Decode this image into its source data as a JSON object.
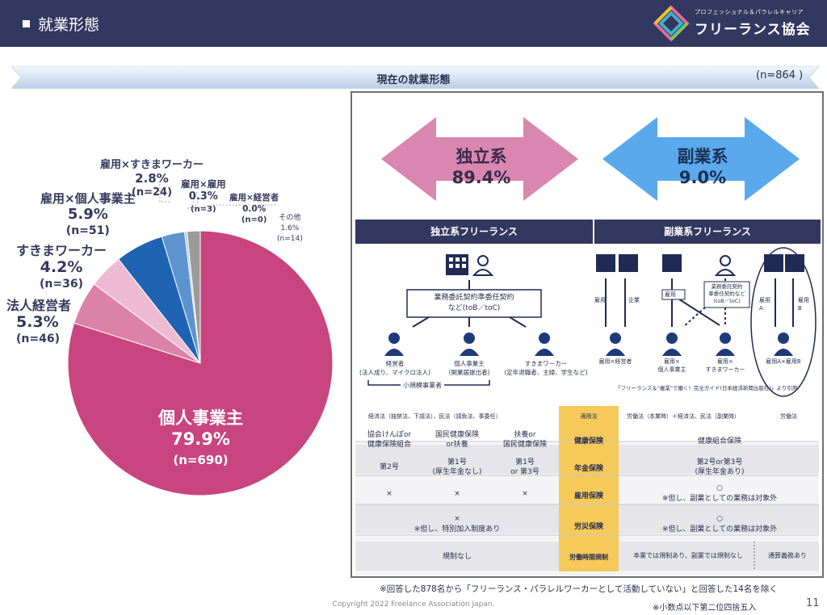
{
  "header": {
    "title": "就業形態",
    "logo_small": "プロフェッショナル＆パラレルキャリア",
    "logo_name": "フリーランス協会"
  },
  "ribbon": {
    "title": "現在の就業形態",
    "n": "(n=864 )"
  },
  "chart_data": {
    "type": "pie",
    "title": "現在の就業形態",
    "slices": [
      {
        "label": "個人事業主",
        "value": 79.9,
        "n": "(n=690)",
        "color": "#c8457f"
      },
      {
        "label": "法人経営者",
        "value": 5.3,
        "n": "(n=46)",
        "color": "#dc82a8"
      },
      {
        "label": "すきまワーカー",
        "value": 4.2,
        "n": "(n=36)",
        "color": "#eebbd3"
      },
      {
        "label": "雇用×個人事業主",
        "value": 5.9,
        "n": "(n=51)",
        "color": "#1f63b3"
      },
      {
        "label": "雇用×すきまワーカー",
        "value": 2.8,
        "n": "(n=24)",
        "color": "#5d93cf"
      },
      {
        "label": "雇用×雇用",
        "value": 0.3,
        "n": "(n=3)",
        "color": "#aac8e6"
      },
      {
        "label": "雇用×経営者",
        "value": 0.0,
        "n": "(n=0)",
        "color": "#e0ebf5"
      },
      {
        "label": "その他",
        "value": 1.6,
        "n": "(n=14)",
        "color": "#9b9b9b"
      }
    ],
    "value_labels": [
      "79.9%",
      "5.3%",
      "4.2%",
      "5.9%",
      "2.8%",
      "0.3%",
      "0.0%",
      "1.6%"
    ]
  },
  "panel": {
    "left_arrow": {
      "label": "独立系",
      "value": "89.4%"
    },
    "right_arrow": {
      "label": "副業系",
      "value": "9.0%"
    },
    "col_left": "独立系フリーランス",
    "col_right": "副業系フリーランス",
    "contract_box": "業務委託契約準委任契約\nなど(toB／toC)",
    "persons_left": [
      {
        "title": "経営者",
        "sub": "(法人成り、マイクロ法人)"
      },
      {
        "title": "個人事業主",
        "sub": "(開業届提出者)"
      },
      {
        "title": "すきまワーカー",
        "sub": "(定年退職者、主婦、学生など)"
      }
    ],
    "small_biz": "小規模事業者",
    "labels_right": {
      "koyou": "雇用",
      "kigyou": "企業",
      "contract": "業務委託契約\n準委任契約など\n(toB／toC)",
      "a": "雇用\nA",
      "b": "雇用\nB"
    },
    "persons_right": [
      "雇用×経営者",
      "雇用×\n個人事業主",
      "雇用×\nすきまワーカー",
      "雇用A×雇用B"
    ],
    "source": "「フリーランス＆\"複業\"で働く！完全ガイド(日本経済新聞出版社)」より引用",
    "law_left": "経済法（独禁法、下請法）、民法（請負法、事委任）",
    "law_mid": "適用法",
    "law_right": "労働法（本業時）＋経済法、民法（副業時）",
    "law_far": "労働法",
    "rows": [
      {
        "head": "健康保険",
        "c1": "協会けんぽor\n健康保険組合",
        "c2": "国民健康保険\nor扶養",
        "c3": "扶養or\n国民健康保険",
        "right": "健康組合保険"
      },
      {
        "head": "年金保険",
        "c1": "第2号",
        "c2": "第1号\n(厚生年金なし)",
        "c3": "第1号\nor 第3号",
        "right": "第2号or第3号\n(厚生年金あり)"
      },
      {
        "head": "雇用保険",
        "c1": "×",
        "c2": "×",
        "c3": "×",
        "right": "○\n※但し、副業としての業務は対象外"
      },
      {
        "head": "労災保険",
        "left": "×\n※但し、特別加入制度あり",
        "right": "○\n※但し、副業としての業務は対象外"
      },
      {
        "head": "労働時間規制",
        "left": "規制なし",
        "right": "本業では規制あり、副業では規制なし",
        "right2": "通算義務あり"
      }
    ]
  },
  "footer": {
    "note1": "※回答した878名から「フリーランス・パラレルワーカーとして活動していない」と回答した14名を除く",
    "copyright": "Copyright 2022 Freelance Association Japan.",
    "note2": "※小数点以下第二位四捨五入",
    "page": "11"
  }
}
